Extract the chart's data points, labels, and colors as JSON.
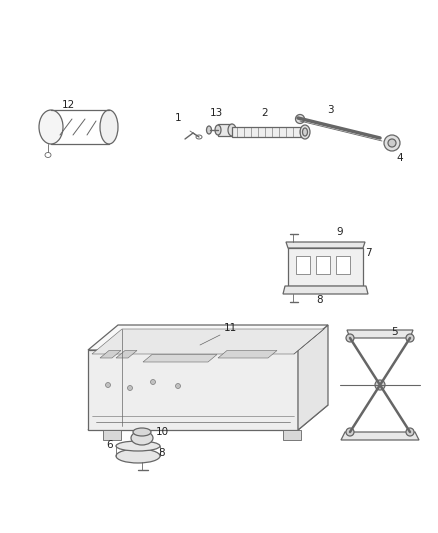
{
  "background_color": "#ffffff",
  "line_color": "#666666",
  "fig_width": 4.38,
  "fig_height": 5.33,
  "dpi": 100
}
